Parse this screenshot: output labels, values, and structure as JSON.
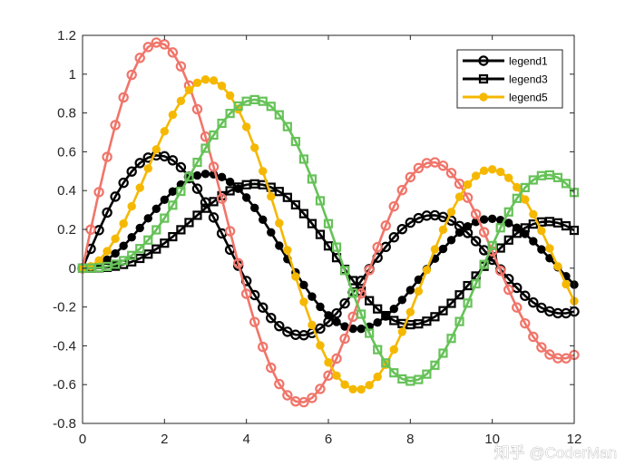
{
  "chart_data": {
    "type": "line",
    "title": "",
    "xlabel": "",
    "ylabel": "",
    "xlim": [
      0,
      12
    ],
    "ylim": [
      -0.8,
      1.2
    ],
    "xticks": [
      "0",
      "2",
      "4",
      "6",
      "8",
      "10",
      "12"
    ],
    "yticks": [
      "-0.8",
      "-0.6",
      "-0.4",
      "-0.2",
      "0",
      "0.2",
      "0.4",
      "0.6",
      "0.8",
      "1",
      "1.2"
    ],
    "grid": false,
    "legend_position": "top-right",
    "legend": [
      {
        "label": "legend1",
        "color": "#000000",
        "marker": "circle-open"
      },
      {
        "label": "legend3",
        "color": "#000000",
        "marker": "square-open"
      },
      {
        "label": "legend5",
        "color": "#f5b800",
        "marker": "circle-filled"
      }
    ],
    "sampling": {
      "x_start": 0,
      "x_step": 0.2,
      "count": 61
    },
    "series": [
      {
        "color": "#000000",
        "marker": "circle-open",
        "k": 1,
        "amplitude": 1,
        "in_legend": true
      },
      {
        "color": "#000000",
        "marker": "circle-filled",
        "k": 2,
        "amplitude": 1,
        "in_legend": false
      },
      {
        "color": "#000000",
        "marker": "square-open",
        "k": 3,
        "amplitude": 1,
        "in_legend": true
      },
      {
        "color": "#f0756a",
        "marker": "circle-open",
        "k": 1,
        "amplitude": 2,
        "in_legend": false
      },
      {
        "color": "#f5b800",
        "marker": "circle-filled",
        "k": 2,
        "amplitude": 2,
        "in_legend": true
      },
      {
        "color": "#66c258",
        "marker": "square-open",
        "k": 3,
        "amplitude": 2,
        "in_legend": false
      }
    ]
  },
  "watermark": {
    "text": "知乎 @CoderMan"
  }
}
